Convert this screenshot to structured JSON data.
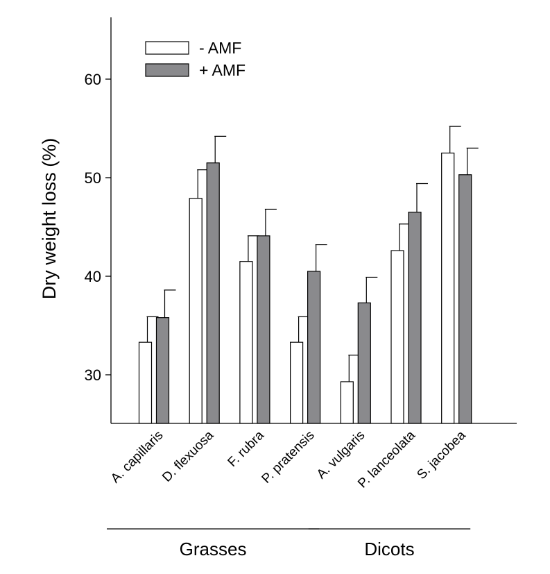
{
  "chart_data": {
    "type": "bar",
    "ylabel": "Dry weight loss (%)",
    "ylim": [
      25,
      66
    ],
    "yticks": [
      30,
      40,
      50,
      60
    ],
    "grid": false,
    "legend_position": "top-left",
    "categories": [
      "A. capillaris",
      "D. flexuosa",
      "F. rubra",
      "P. pratensis",
      "A. vulgaris",
      "P. lanceolata",
      "S. jacobea"
    ],
    "series": [
      {
        "name": "- AMF",
        "color": "#ffffff",
        "values": [
          33.3,
          47.9,
          41.5,
          33.3,
          29.3,
          42.6,
          52.5
        ],
        "errors": [
          2.6,
          2.9,
          2.6,
          2.6,
          2.7,
          2.7,
          2.7
        ]
      },
      {
        "name": "+ AMF",
        "color": "#8a8a8d",
        "values": [
          35.8,
          51.5,
          44.1,
          40.5,
          37.3,
          46.5,
          50.3
        ],
        "errors": [
          2.8,
          2.7,
          2.7,
          2.7,
          2.6,
          2.9,
          2.7
        ]
      }
    ],
    "groups": [
      {
        "label": "Grasses",
        "categories": [
          "A. capillaris",
          "D. flexuosa",
          "F. rubra",
          "P. pratensis"
        ]
      },
      {
        "label": "Dicots",
        "categories": [
          "A. vulgaris",
          "P. lanceolata",
          "S. jacobea"
        ]
      }
    ]
  }
}
